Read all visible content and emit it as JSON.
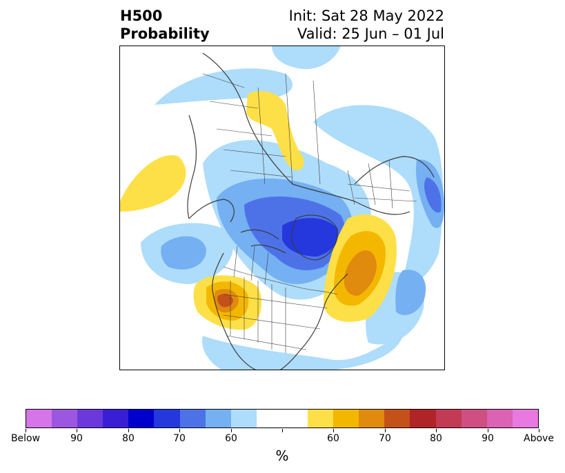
{
  "title": {
    "left_line1": "H500",
    "left_line2": "Probability",
    "right_line1": "Init: Sat 28 May 2022",
    "right_line2": "Valid: 25 Jun – 01 Jul"
  },
  "colorbar": {
    "segments": [
      {
        "color": "#d575e8"
      },
      {
        "color": "#9c57e0"
      },
      {
        "color": "#6b39db"
      },
      {
        "color": "#3a1ed6"
      },
      {
        "color": "#0000cc"
      },
      {
        "color": "#2438dd"
      },
      {
        "color": "#4d72e8"
      },
      {
        "color": "#74b0f2"
      },
      {
        "color": "#aedcfb"
      },
      {
        "color": "#ffffff",
        "width": 2
      },
      {
        "color": "#fde047"
      },
      {
        "color": "#f4b700"
      },
      {
        "color": "#e08a0e"
      },
      {
        "color": "#c4511a"
      },
      {
        "color": "#b02327"
      },
      {
        "color": "#c33a55"
      },
      {
        "color": "#cf4f82"
      },
      {
        "color": "#db62b4"
      },
      {
        "color": "#e879e0"
      }
    ],
    "tick_labels": [
      "Below",
      "90",
      "80",
      "70",
      "60",
      "",
      "60",
      "70",
      "80",
      "90",
      "Above"
    ],
    "unit_label": "%"
  },
  "map": {
    "colors": {
      "below_55": "#aedcfb",
      "below_60": "#74b0f2",
      "below_70": "#4d72e8",
      "below_75": "#2438dd",
      "above_55": "#fde047",
      "above_60": "#f4b700",
      "above_65": "#e08a0e",
      "above_70": "#c4511a",
      "coastline": "#3a3a3a"
    }
  }
}
